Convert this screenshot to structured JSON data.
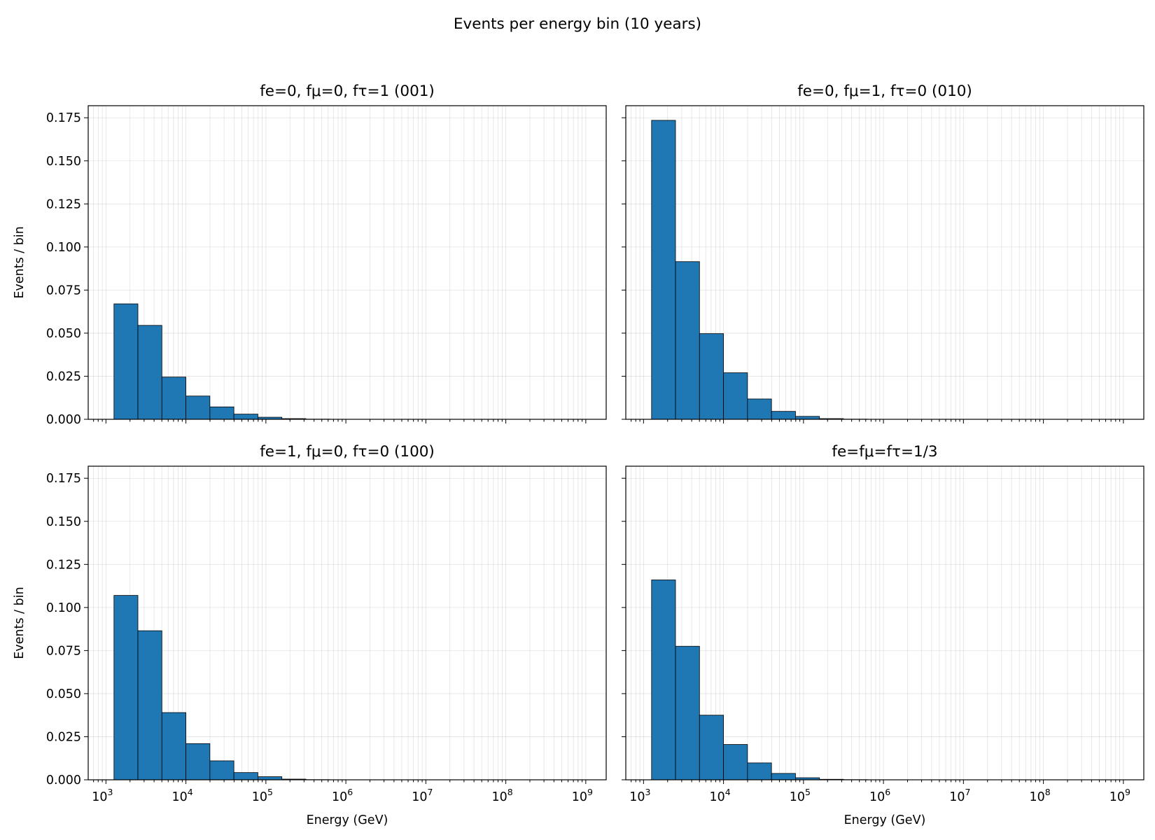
{
  "figure": {
    "title": "Events per energy bin (10 years)"
  },
  "chart_data": [
    {
      "type": "bar",
      "title": "fe=0, fμ=0, fτ=1 (001)",
      "xlabel": "",
      "ylabel": "Events / bin",
      "xscale": "log",
      "xlim": [
        600,
        1800000000.0
      ],
      "ylim": [
        0,
        0.182
      ],
      "grid": true,
      "x_tick_labels": [
        "10",
        "10",
        "10",
        "10",
        "10",
        "10",
        "10"
      ],
      "x_tick_exponents": [
        "3",
        "4",
        "5",
        "6",
        "7",
        "8",
        "9"
      ],
      "x_tick_values": [
        1000.0,
        10000.0,
        100000.0,
        1000000.0,
        10000000.0,
        100000000.0,
        1000000000.0
      ],
      "x_ticks_labeled": false,
      "y_ticks": [
        "0.000",
        "0.025",
        "0.050",
        "0.075",
        "0.100",
        "0.125",
        "0.150",
        "0.175"
      ],
      "y_ticks_labeled": true,
      "bin_edges": [
        1260,
        2510,
        5010,
        10000,
        19950,
        39810,
        79430,
        158490,
        316230,
        630960
      ],
      "values": [
        0.067,
        0.0545,
        0.0245,
        0.0135,
        0.0072,
        0.003,
        0.0012,
        0.0004,
        0.0001
      ]
    },
    {
      "type": "bar",
      "title": "fe=0, fμ=1, fτ=0 (010)",
      "xlabel": "",
      "ylabel": "",
      "xscale": "log",
      "xlim": [
        600,
        1800000000.0
      ],
      "ylim": [
        0,
        0.182
      ],
      "grid": true,
      "x_tick_labels": [
        "10",
        "10",
        "10",
        "10",
        "10",
        "10",
        "10"
      ],
      "x_tick_exponents": [
        "3",
        "4",
        "5",
        "6",
        "7",
        "8",
        "9"
      ],
      "x_tick_values": [
        1000.0,
        10000.0,
        100000.0,
        1000000.0,
        10000000.0,
        100000000.0,
        1000000000.0
      ],
      "x_ticks_labeled": false,
      "y_ticks": [
        "0.000",
        "0.025",
        "0.050",
        "0.075",
        "0.100",
        "0.125",
        "0.150",
        "0.175"
      ],
      "y_ticks_labeled": false,
      "bin_edges": [
        1260,
        2510,
        5010,
        10000,
        19950,
        39810,
        79430,
        158490,
        316230,
        630960
      ],
      "values": [
        0.1735,
        0.0915,
        0.0497,
        0.027,
        0.0118,
        0.0046,
        0.0017,
        0.0004,
        0.0001
      ]
    },
    {
      "type": "bar",
      "title": "fe=1, fμ=0, fτ=0 (100)",
      "xlabel": "Energy (GeV)",
      "ylabel": "Events / bin",
      "xscale": "log",
      "xlim": [
        600,
        1800000000.0
      ],
      "ylim": [
        0,
        0.182
      ],
      "grid": true,
      "x_tick_labels": [
        "10",
        "10",
        "10",
        "10",
        "10",
        "10",
        "10"
      ],
      "x_tick_exponents": [
        "3",
        "4",
        "5",
        "6",
        "7",
        "8",
        "9"
      ],
      "x_tick_values": [
        1000.0,
        10000.0,
        100000.0,
        1000000.0,
        10000000.0,
        100000000.0,
        1000000000.0
      ],
      "x_ticks_labeled": true,
      "y_ticks": [
        "0.000",
        "0.025",
        "0.050",
        "0.075",
        "0.100",
        "0.125",
        "0.150",
        "0.175"
      ],
      "y_ticks_labeled": true,
      "bin_edges": [
        1260,
        2510,
        5010,
        10000,
        19950,
        39810,
        79430,
        158490,
        316230,
        630960
      ],
      "values": [
        0.107,
        0.0865,
        0.039,
        0.021,
        0.011,
        0.0042,
        0.0018,
        0.0004,
        0.0001
      ]
    },
    {
      "type": "bar",
      "title": "fe=fμ=fτ=1/3",
      "xlabel": "Energy (GeV)",
      "ylabel": "",
      "xscale": "log",
      "xlim": [
        600,
        1800000000.0
      ],
      "ylim": [
        0,
        0.182
      ],
      "grid": true,
      "x_tick_labels": [
        "10",
        "10",
        "10",
        "10",
        "10",
        "10",
        "10"
      ],
      "x_tick_exponents": [
        "3",
        "4",
        "5",
        "6",
        "7",
        "8",
        "9"
      ],
      "x_tick_values": [
        1000.0,
        10000.0,
        100000.0,
        1000000.0,
        10000000.0,
        100000000.0,
        1000000000.0
      ],
      "x_ticks_labeled": true,
      "y_ticks": [
        "0.000",
        "0.025",
        "0.050",
        "0.075",
        "0.100",
        "0.125",
        "0.150",
        "0.175"
      ],
      "y_ticks_labeled": false,
      "bin_edges": [
        1260,
        2510,
        5010,
        10000,
        19950,
        39810,
        79430,
        158490,
        316230,
        630960
      ],
      "values": [
        0.116,
        0.0775,
        0.0375,
        0.0205,
        0.0098,
        0.0037,
        0.0012,
        0.0003,
        0.0001
      ]
    }
  ]
}
